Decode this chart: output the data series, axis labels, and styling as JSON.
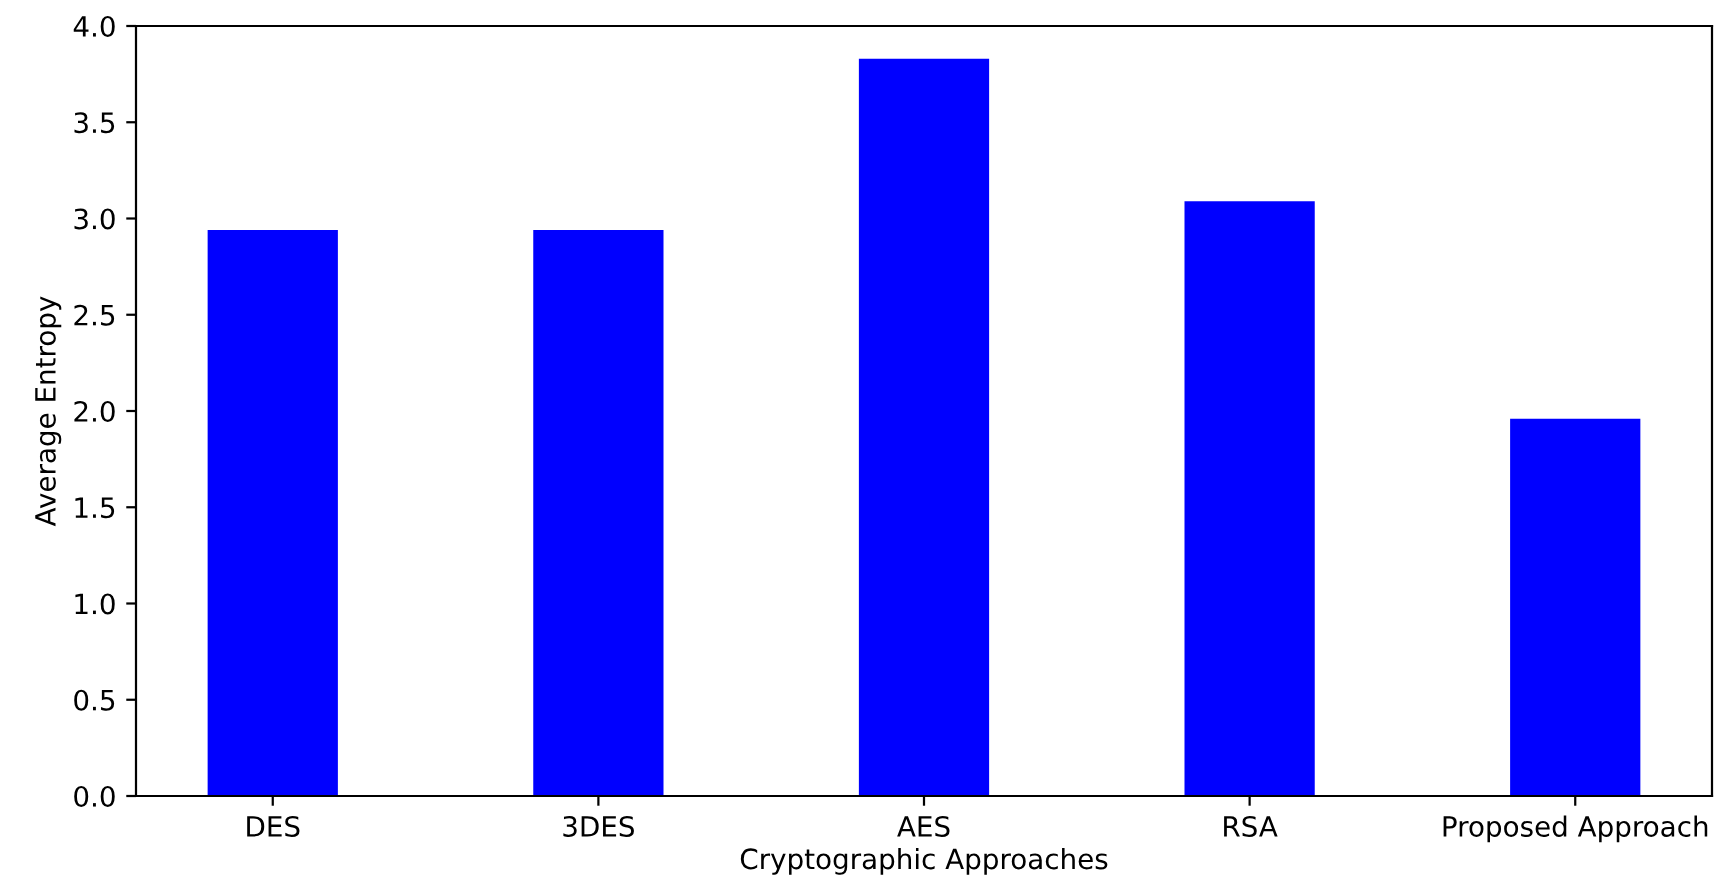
{
  "chart_data": {
    "type": "bar",
    "xlabel": "Cryptographic Approaches",
    "ylabel": "Average Entropy",
    "categories": [
      "DES",
      "3DES",
      "AES",
      "RSA",
      "Proposed Approach"
    ],
    "values": [
      2.94,
      2.94,
      3.83,
      3.09,
      1.96
    ],
    "color": "#0000ff",
    "ylim": [
      0,
      4
    ],
    "yticks": [
      {
        "value": 0,
        "label": "0.0"
      },
      {
        "value": 0.5,
        "label": "0.5"
      },
      {
        "value": 1,
        "label": "1.0"
      },
      {
        "value": 1.5,
        "label": "1.5"
      },
      {
        "value": 2,
        "label": "2.0"
      },
      {
        "value": 2.5,
        "label": "2.5"
      },
      {
        "value": 3,
        "label": "3.0"
      },
      {
        "value": 3.5,
        "label": "3.5"
      },
      {
        "value": 4,
        "label": "4.0"
      }
    ]
  }
}
